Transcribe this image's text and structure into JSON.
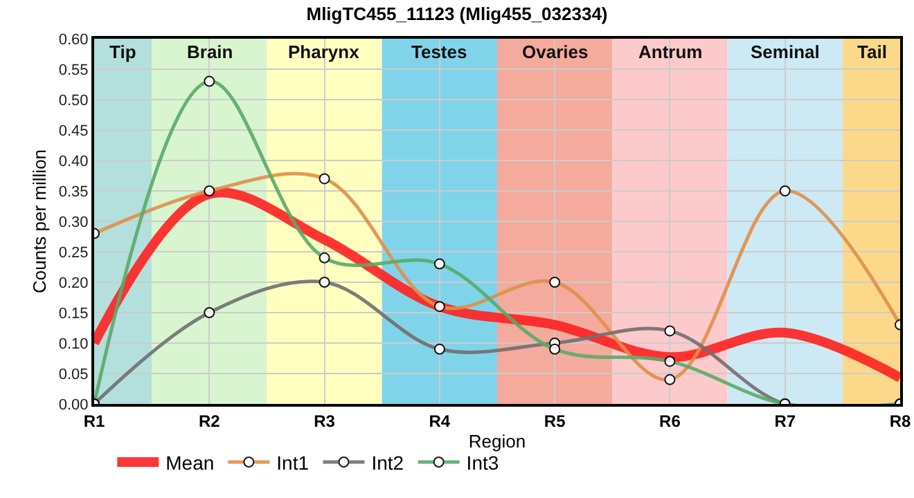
{
  "chart_data": {
    "type": "line",
    "title": "MligTC455_11123 (Mlig455_032334)",
    "xlabel": "Region",
    "ylabel": "Counts per million",
    "categories": [
      "R1",
      "R2",
      "R3",
      "R4",
      "R5",
      "R6",
      "R7",
      "R8"
    ],
    "series": [
      {
        "name": "Mean",
        "color": "#ff2020",
        "marker": "none",
        "values": [
          0.1,
          0.345,
          0.27,
          0.16,
          0.13,
          0.077,
          0.117,
          0.043
        ]
      },
      {
        "name": "Int1",
        "color": "#e0904a",
        "marker": "circle",
        "values": [
          0.28,
          0.35,
          0.37,
          0.16,
          0.2,
          0.04,
          0.35,
          0.13
        ]
      },
      {
        "name": "Int2",
        "color": "#707070",
        "marker": "circle",
        "values": [
          0,
          0.15,
          0.2,
          0.09,
          0.1,
          0.12,
          0,
          0
        ]
      },
      {
        "name": "Int3",
        "color": "#5aaa6a",
        "marker": "circle",
        "values": [
          0,
          0.53,
          0.24,
          0.23,
          0.09,
          0.07,
          0,
          0
        ]
      }
    ],
    "ylim": [
      0,
      0.6
    ],
    "yticks": [
      {
        "value": 0,
        "label": "0.00"
      },
      {
        "value": 0.05,
        "label": "0.05"
      },
      {
        "value": 0.1,
        "label": "0.10"
      },
      {
        "value": 0.15,
        "label": "0.15"
      },
      {
        "value": 0.2,
        "label": "0.20"
      },
      {
        "value": 0.25,
        "label": "0.25"
      },
      {
        "value": 0.3,
        "label": "0.30"
      },
      {
        "value": 0.35,
        "label": "0.35"
      },
      {
        "value": 0.4,
        "label": "0.40"
      },
      {
        "value": 0.45,
        "label": "0.45"
      },
      {
        "value": 0.5,
        "label": "0.50"
      },
      {
        "value": 0.55,
        "label": "0.55"
      },
      {
        "value": 0.6,
        "label": "0.60"
      }
    ],
    "bands": [
      {
        "axis": "x",
        "from": "R1",
        "to": "R1",
        "label": "Tip",
        "color": "#b3e0dc"
      },
      {
        "axis": "x",
        "from": "R2",
        "to": "R2",
        "label": "Brain",
        "color": "#d8f5d0"
      },
      {
        "axis": "x",
        "from": "R3",
        "to": "R3",
        "label": "Pharynx",
        "color": "#ffffc0"
      },
      {
        "axis": "x",
        "from": "R4",
        "to": "R4",
        "label": "Testes",
        "color": "#80d4ea"
      },
      {
        "axis": "x",
        "from": "R5",
        "to": "R5",
        "label": "Ovaries",
        "color": "#f4aa9c"
      },
      {
        "axis": "x",
        "from": "R6",
        "to": "R6",
        "label": "Antrum",
        "color": "#fccaca"
      },
      {
        "axis": "x",
        "from": "R7",
        "to": "R7",
        "label": "Seminal",
        "color": "#cdeaf4"
      },
      {
        "axis": "x",
        "from": "R8",
        "to": "R8",
        "label": "Tail",
        "color": "#fcd98a"
      }
    ],
    "grid": true,
    "legend": "bottom",
    "line_style": "solid"
  }
}
